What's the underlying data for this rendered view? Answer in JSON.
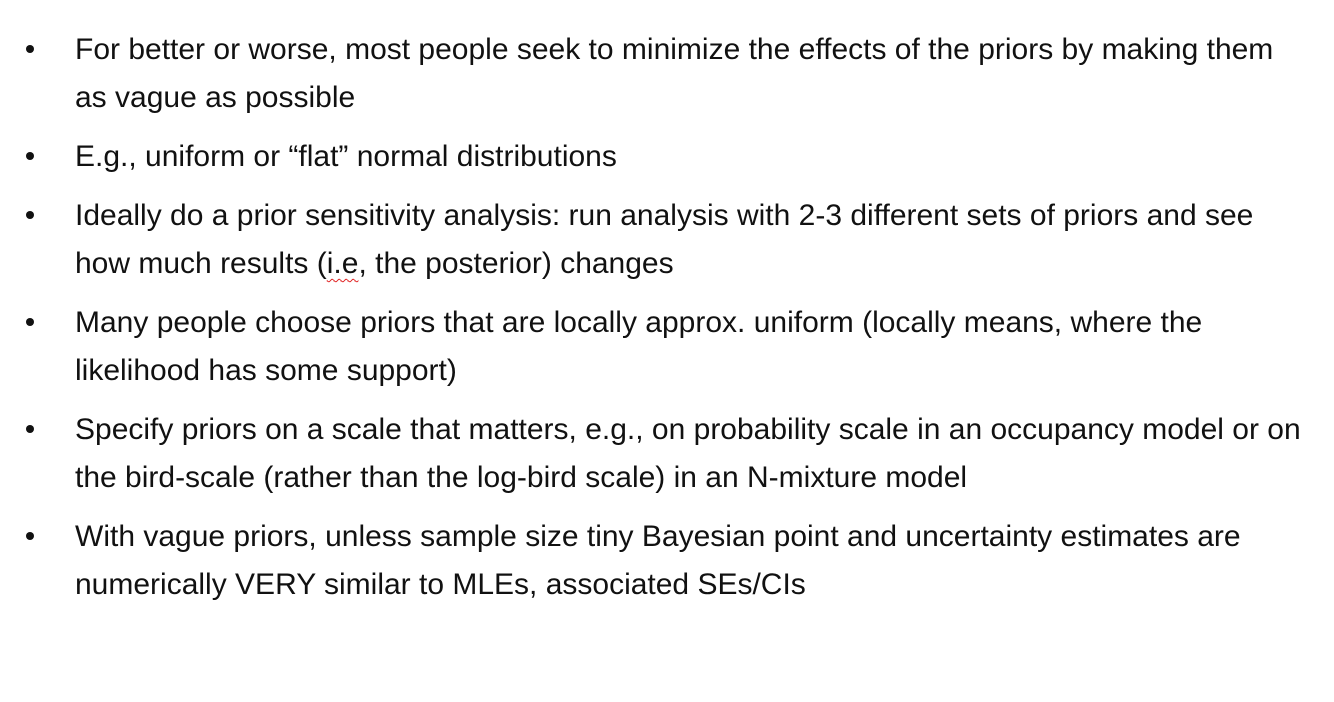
{
  "bullets": [
    {
      "text": "For better or worse, most people seek to minimize the effects of the priors by making them as vague as possible"
    },
    {
      "text": "E.g., uniform or “flat” normal distributions"
    },
    {
      "text_before": "Ideally do a prior sensitivity analysis: run analysis with 2-3 different sets of priors and see how much results (",
      "text_flagged": "i.e",
      "text_after": ", the posterior) changes"
    },
    {
      "text": "Many people choose priors that are locally approx. uniform (locally means, where the likelihood has some support)"
    },
    {
      "text": "Specify priors on a scale that matters, e.g., on probability scale in an occupancy model or on the bird-scale (rather than the log-bird scale) in an N-mixture model"
    },
    {
      "text": "With vague priors, unless sample size tiny Bayesian point and uncertainty estimates are numerically VERY similar to MLEs, associated SEs/CIs"
    }
  ]
}
